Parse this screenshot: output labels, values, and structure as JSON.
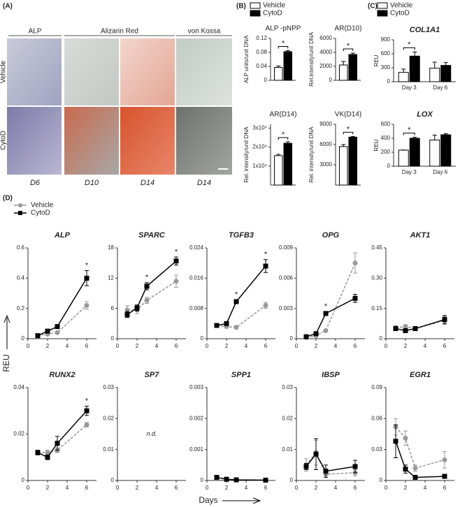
{
  "panel_labels": [
    "(A)",
    "(B)",
    "(C)",
    "(D)"
  ],
  "panel_a": {
    "columns": [
      "ALP",
      "Alizarin Red",
      "von Kossa"
    ],
    "rows": [
      "Vehicle",
      "CytoD"
    ],
    "days": [
      "D6",
      "D10",
      "D14",
      "D14"
    ]
  },
  "panel_d": {
    "ylabel": "REU",
    "xlabel": "Days"
  },
  "chart_data": [
    {
      "type": "bar",
      "title": "ALP -pNPP",
      "ylabel": "ALP units/unit DNA",
      "categories": [
        null
      ],
      "ylim": [
        0,
        0.12
      ],
      "yticks": [
        0,
        0.04,
        0.08,
        0.12
      ],
      "significance": "*",
      "series": [
        {
          "name": "Vehicle",
          "color": "#ffffff",
          "values": [
            0.037
          ],
          "errors": [
            0.004
          ]
        },
        {
          "name": "CytoD",
          "color": "#000000",
          "values": [
            0.082
          ],
          "errors": [
            0.003
          ]
        }
      ]
    },
    {
      "type": "bar",
      "title": "AR(D10)",
      "ylabel": "Rel.intensity/unit DNA",
      "categories": [
        null
      ],
      "ylim": [
        0,
        6000
      ],
      "yticks": [
        0,
        2000,
        4000,
        6000
      ],
      "significance": "*",
      "series": [
        {
          "name": "Vehicle",
          "color": "#ffffff",
          "values": [
            2200
          ],
          "errors": [
            500
          ]
        },
        {
          "name": "CytoD",
          "color": "#000000",
          "values": [
            3700
          ],
          "errors": [
            200
          ]
        }
      ]
    },
    {
      "type": "bar",
      "title": "AR(D14)",
      "ylabel": "Rel. intensity/unit DNA",
      "categories": [
        null
      ],
      "ylim": [
        0,
        32000
      ],
      "yticks": [
        {
          "value": 10000,
          "label": "1x10⁴"
        },
        {
          "value": 20000,
          "label": "2x10⁴"
        },
        {
          "value": 30000,
          "label": "3x10⁴"
        }
      ],
      "significance": "*",
      "series": [
        {
          "name": "Vehicle",
          "color": "#ffffff",
          "values": [
            15500
          ],
          "errors": [
            700
          ]
        },
        {
          "name": "CytoD",
          "color": "#000000",
          "values": [
            22000
          ],
          "errors": [
            800
          ]
        }
      ]
    },
    {
      "type": "bar",
      "title": "VK(D14)",
      "ylabel": "Rel. intensity/unit DNA",
      "categories": [
        null
      ],
      "ylim": [
        0,
        9000
      ],
      "yticks": [
        3000,
        6000,
        9000
      ],
      "significance": "*",
      "series": [
        {
          "name": "Vehicle",
          "color": "#ffffff",
          "values": [
            5700
          ],
          "errors": [
            300
          ]
        },
        {
          "name": "CytoD",
          "color": "#000000",
          "values": [
            7100
          ],
          "errors": [
            100
          ]
        }
      ]
    },
    {
      "type": "bar",
      "title": "COL1A1",
      "ylabel": "REU",
      "categories": [
        "Day 3",
        "Day 6"
      ],
      "ylim": [
        0,
        900
      ],
      "yticks": [
        0,
        300,
        600,
        900
      ],
      "significance": "*",
      "series": [
        {
          "name": "Vehicle",
          "color": "#ffffff",
          "values": [
            200,
            290
          ],
          "errors": [
            70,
            130
          ]
        },
        {
          "name": "CytoD",
          "color": "#000000",
          "values": [
            550,
            350
          ],
          "errors": [
            90,
            60
          ]
        }
      ]
    },
    {
      "type": "bar",
      "title": "LOX",
      "ylabel": "REU",
      "categories": [
        "Day 3",
        "Day 6"
      ],
      "ylim": [
        0,
        600
      ],
      "yticks": [
        0,
        200,
        400,
        600
      ],
      "significance": "*",
      "series": [
        {
          "name": "Vehicle",
          "color": "#ffffff",
          "values": [
            230,
            375
          ],
          "errors": [
            3,
            70
          ]
        },
        {
          "name": "CytoD",
          "color": "#000000",
          "values": [
            400,
            450
          ],
          "errors": [
            15,
            15
          ]
        }
      ]
    },
    {
      "type": "line",
      "title": "ALP",
      "x": [
        1,
        2,
        3,
        6
      ],
      "xlim": [
        0,
        7
      ],
      "xticks": [
        0,
        2,
        4,
        6
      ],
      "ylim": [
        0,
        0.6
      ],
      "yticks": [
        0,
        0.2,
        0.4,
        0.6
      ],
      "annotations": [
        {
          "text": "*",
          "x": 6
        }
      ],
      "series": [
        {
          "name": "Vehicle",
          "color": "#999999",
          "values": [
            0.02,
            0.03,
            0.04,
            0.22
          ],
          "errors": [
            0.005,
            0.005,
            0.005,
            0.025
          ]
        },
        {
          "name": "CytoD",
          "color": "#000000",
          "values": [
            0.02,
            0.05,
            0.08,
            0.4
          ],
          "errors": [
            0.005,
            0.01,
            0.01,
            0.05
          ]
        }
      ]
    },
    {
      "type": "line",
      "title": "SPARC",
      "x": [
        1,
        2,
        3,
        6
      ],
      "xlim": [
        0,
        7
      ],
      "xticks": [
        0,
        2,
        4,
        6
      ],
      "ylim": [
        0,
        18
      ],
      "yticks": [
        0,
        6,
        12,
        18
      ],
      "annotations": [
        {
          "text": "*",
          "x": 3
        },
        {
          "text": "*",
          "x": 6
        }
      ],
      "series": [
        {
          "name": "Vehicle",
          "color": "#999999",
          "values": [
            5.7,
            5.7,
            7.6,
            11.4
          ],
          "errors": [
            0.8,
            0.7,
            0.6,
            1.2
          ]
        },
        {
          "name": "CytoD",
          "color": "#000000",
          "values": [
            4.8,
            6.1,
            10.4,
            15.4
          ],
          "errors": [
            0.6,
            0.6,
            0.7,
            0.8
          ]
        }
      ]
    },
    {
      "type": "line",
      "title": "TGFB3",
      "x": [
        1,
        2,
        3,
        6
      ],
      "xlim": [
        0,
        7
      ],
      "xticks": [
        0,
        2,
        4,
        6
      ],
      "ylim": [
        0,
        0.024
      ],
      "yticks": [
        0,
        0.008,
        0.016,
        0.024
      ],
      "annotations": [
        {
          "text": "*",
          "x": 3
        },
        {
          "text": "*",
          "x": 6
        }
      ],
      "series": [
        {
          "name": "Vehicle",
          "color": "#999999",
          "values": [
            0.0035,
            0.0032,
            0.003,
            0.0088
          ],
          "errors": [
            0.0003,
            0.0003,
            0.0003,
            0.0008
          ]
        },
        {
          "name": "CytoD",
          "color": "#000000",
          "values": [
            0.0035,
            0.004,
            0.0098,
            0.0192
          ],
          "errors": [
            0.0003,
            0.0003,
            0.0005,
            0.0017
          ]
        }
      ]
    },
    {
      "type": "line",
      "title": "OPG",
      "x": [
        1,
        2,
        3,
        6
      ],
      "xlim": [
        0,
        7
      ],
      "xticks": [
        0,
        2,
        4,
        6
      ],
      "ylim": [
        0,
        0.009
      ],
      "yticks": [
        0,
        0.003,
        0.006,
        0.009
      ],
      "annotations": [
        {
          "text": "*",
          "x": 3
        }
      ],
      "series": [
        {
          "name": "Vehicle",
          "color": "#999999",
          "values": [
            0.0001,
            0.0003,
            0.0008,
            0.0075
          ],
          "errors": [
            0.0001,
            0.0001,
            0.0001,
            0.001
          ]
        },
        {
          "name": "CytoD",
          "color": "#000000",
          "values": [
            0.0002,
            0.0005,
            0.0025,
            0.004
          ],
          "errors": [
            0.0001,
            0.0001,
            0.0002,
            0.0004
          ]
        }
      ]
    },
    {
      "type": "line",
      "title": "AKT1",
      "x": [
        1,
        2,
        3,
        6
      ],
      "xlim": [
        0,
        7
      ],
      "xticks": [
        0,
        2,
        4,
        6
      ],
      "ylim": [
        0,
        0.45
      ],
      "yticks": [
        0,
        0.15,
        {
          "value": 0.3,
          "label": "0.30"
        },
        0.45
      ],
      "series": [
        {
          "name": "Vehicle",
          "color": "#999999",
          "values": [
            0.055,
            0.06,
            0.05,
            0.09
          ],
          "errors": [
            0.01,
            0.01,
            0.01,
            0.02
          ]
        },
        {
          "name": "CytoD",
          "color": "#000000",
          "values": [
            0.05,
            0.04,
            0.05,
            0.095
          ],
          "errors": [
            0.01,
            0.01,
            0.01,
            0.02
          ]
        }
      ]
    },
    {
      "type": "line",
      "title": "RUNX2",
      "x": [
        1,
        2,
        3,
        6
      ],
      "xlim": [
        0,
        7
      ],
      "xticks": [
        0,
        2,
        4,
        6
      ],
      "ylim": [
        0,
        0.04
      ],
      "yticks": [
        0,
        0.02,
        0.04
      ],
      "annotations": [
        {
          "text": "*",
          "x": 6
        }
      ],
      "series": [
        {
          "name": "Vehicle",
          "color": "#999999",
          "values": [
            0.012,
            0.012,
            0.013,
            0.024
          ],
          "errors": [
            0.001,
            0.001,
            0.001,
            0.001
          ]
        },
        {
          "name": "CytoD",
          "color": "#000000",
          "values": [
            0.012,
            0.01,
            0.016,
            0.03
          ],
          "errors": [
            0.001,
            0.001,
            0.003,
            0.002
          ]
        }
      ]
    },
    {
      "type": "line",
      "title": "SP7",
      "x": [
        1,
        2,
        3,
        6
      ],
      "xlim": [
        0,
        7
      ],
      "xticks": [
        0,
        2,
        4,
        6
      ],
      "ylim": [
        0,
        0.03
      ],
      "yticks": [
        0,
        0.01,
        0.02,
        0.03
      ],
      "annotations": [
        {
          "text": "n.d."
        }
      ],
      "series": []
    },
    {
      "type": "line",
      "title": "SPP1",
      "x": [
        1,
        2,
        3,
        6
      ],
      "xlim": [
        0,
        7
      ],
      "xticks": [
        0,
        2,
        4,
        6
      ],
      "ylim": [
        0,
        0.003
      ],
      "yticks": [
        0,
        0.001,
        0.002,
        0.003
      ],
      "series": [
        {
          "name": "Vehicle",
          "color": "#999999",
          "values": [
            0.0001,
            3e-05,
            2e-05,
            1e-05
          ],
          "errors": [
            5e-05,
            1e-05,
            1e-05,
            1e-05
          ]
        },
        {
          "name": "CytoD",
          "color": "#000000",
          "values": [
            0.0001,
            4e-05,
            2e-05,
            1e-05
          ],
          "errors": [
            5e-05,
            1e-05,
            1e-05,
            1e-05
          ]
        }
      ]
    },
    {
      "type": "line",
      "title": "IBSP",
      "x": [
        1,
        2,
        3,
        6
      ],
      "xlim": [
        0,
        7
      ],
      "xticks": [
        0,
        2,
        4,
        6
      ],
      "ylim": [
        0,
        0.03
      ],
      "yticks": [
        0,
        0.01,
        0.02,
        0.03
      ],
      "series": [
        {
          "name": "Vehicle",
          "color": "#999999",
          "values": [
            0.005,
            0.009,
            0.002,
            0.0025
          ],
          "errors": [
            0.002,
            0.004,
            0.001,
            0.001
          ]
        },
        {
          "name": "CytoD",
          "color": "#000000",
          "values": [
            0.0045,
            0.0085,
            0.003,
            0.0045
          ],
          "errors": [
            0.001,
            0.005,
            0.002,
            0.002
          ]
        }
      ]
    },
    {
      "type": "line",
      "title": "EGR1",
      "x": [
        1,
        2,
        3,
        6
      ],
      "xlim": [
        0,
        7
      ],
      "xticks": [
        0,
        2,
        4,
        6
      ],
      "ylim": [
        0,
        0.09
      ],
      "yticks": [
        0,
        0.03,
        0.06,
        0.09
      ],
      "series": [
        {
          "name": "Vehicle",
          "color": "#999999",
          "values": [
            0.052,
            0.041,
            0.012,
            0.02
          ],
          "errors": [
            0.008,
            0.007,
            0.003,
            0.008
          ]
        },
        {
          "name": "CytoD",
          "color": "#000000",
          "values": [
            0.038,
            0.011,
            0.003,
            0.004
          ],
          "errors": [
            0.016,
            0.004,
            0.001,
            0.001
          ]
        }
      ]
    }
  ]
}
